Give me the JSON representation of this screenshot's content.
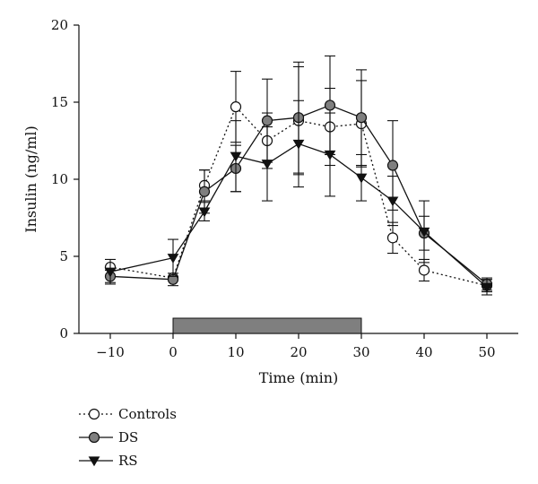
{
  "chart_data": {
    "type": "line",
    "xlabel": "Time (min)",
    "ylabel": "Insulin (ng/ml)",
    "xlim": [
      -15,
      55
    ],
    "ylim": [
      0,
      20
    ],
    "x_ticks": [
      -10,
      0,
      10,
      20,
      30,
      40,
      50
    ],
    "y_ticks": [
      0,
      5,
      10,
      15,
      20
    ],
    "stimulus_period": [
      0,
      30
    ],
    "grid": false,
    "legend_position": "bottom-left",
    "series": [
      {
        "name": "Controls",
        "marker": "open-circle",
        "line": "dotted",
        "x": [
          -10,
          0,
          5,
          10,
          15,
          20,
          25,
          30,
          35,
          40,
          50
        ],
        "y": [
          4.3,
          3.6,
          9.6,
          14.7,
          12.5,
          13.8,
          13.4,
          13.6,
          6.2,
          4.1,
          3.1
        ],
        "err": [
          0.0,
          0.0,
          1.0,
          2.3,
          1.8,
          3.5,
          2.5,
          2.8,
          1.0,
          0.7,
          0.4
        ]
      },
      {
        "name": "DS",
        "marker": "filled-circle",
        "line": "solid",
        "x": [
          -10,
          0,
          5,
          10,
          15,
          20,
          25,
          30,
          35,
          40,
          50
        ],
        "y": [
          3.7,
          3.5,
          9.2,
          10.7,
          13.8,
          14.0,
          14.8,
          14.0,
          10.9,
          6.5,
          3.2
        ],
        "err": [
          0.4,
          0.4,
          1.4,
          1.5,
          2.7,
          3.6,
          3.2,
          3.1,
          2.9,
          1.1,
          0.4
        ]
      },
      {
        "name": "RS",
        "marker": "filled-triangle-down",
        "line": "solid",
        "x": [
          -10,
          0,
          5,
          10,
          15,
          20,
          25,
          30,
          35,
          40,
          50
        ],
        "y": [
          4.0,
          4.9,
          7.9,
          11.5,
          11.0,
          12.3,
          11.6,
          10.1,
          8.6,
          6.6,
          3.0
        ],
        "err": [
          0.8,
          1.2,
          0.6,
          2.3,
          2.4,
          2.8,
          2.7,
          1.5,
          1.6,
          2.0,
          0.5
        ]
      }
    ]
  }
}
